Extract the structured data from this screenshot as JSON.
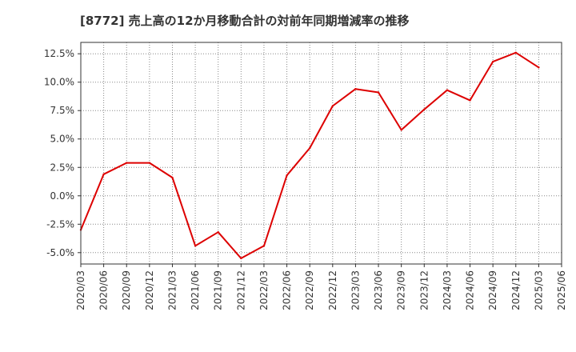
{
  "chart_data": {
    "type": "line",
    "title": "[8772]  売上高の12か月移動合計の対前年同期増減率の推移",
    "xlabel": "",
    "ylabel": "",
    "ylim": [
      -6.0,
      13.5
    ],
    "y_ticks": [
      -5.0,
      -2.5,
      0.0,
      2.5,
      5.0,
      7.5,
      10.0,
      12.5
    ],
    "y_tick_labels": [
      "-5.0%",
      "-2.5%",
      "0.0%",
      "2.5%",
      "5.0%",
      "7.5%",
      "10.0%",
      "12.5%"
    ],
    "categories": [
      "2020/03",
      "2020/06",
      "2020/09",
      "2020/12",
      "2021/03",
      "2021/06",
      "2021/09",
      "2021/12",
      "2022/03",
      "2022/06",
      "2022/09",
      "2022/12",
      "2023/03",
      "2023/06",
      "2023/09",
      "2023/12",
      "2024/03",
      "2024/06",
      "2024/09",
      "2024/12",
      "2025/03",
      "2025/06"
    ],
    "grid": true,
    "legend": "none",
    "line_color": "#dd0000",
    "series": [
      {
        "values": [
          -3.0,
          1.9,
          2.9,
          2.9,
          1.6,
          -4.4,
          -3.2,
          -5.5,
          -4.4,
          1.8,
          4.2,
          7.9,
          9.4,
          9.1,
          5.8,
          7.6,
          9.3,
          8.4,
          11.8,
          12.6,
          11.3,
          null
        ]
      }
    ]
  }
}
